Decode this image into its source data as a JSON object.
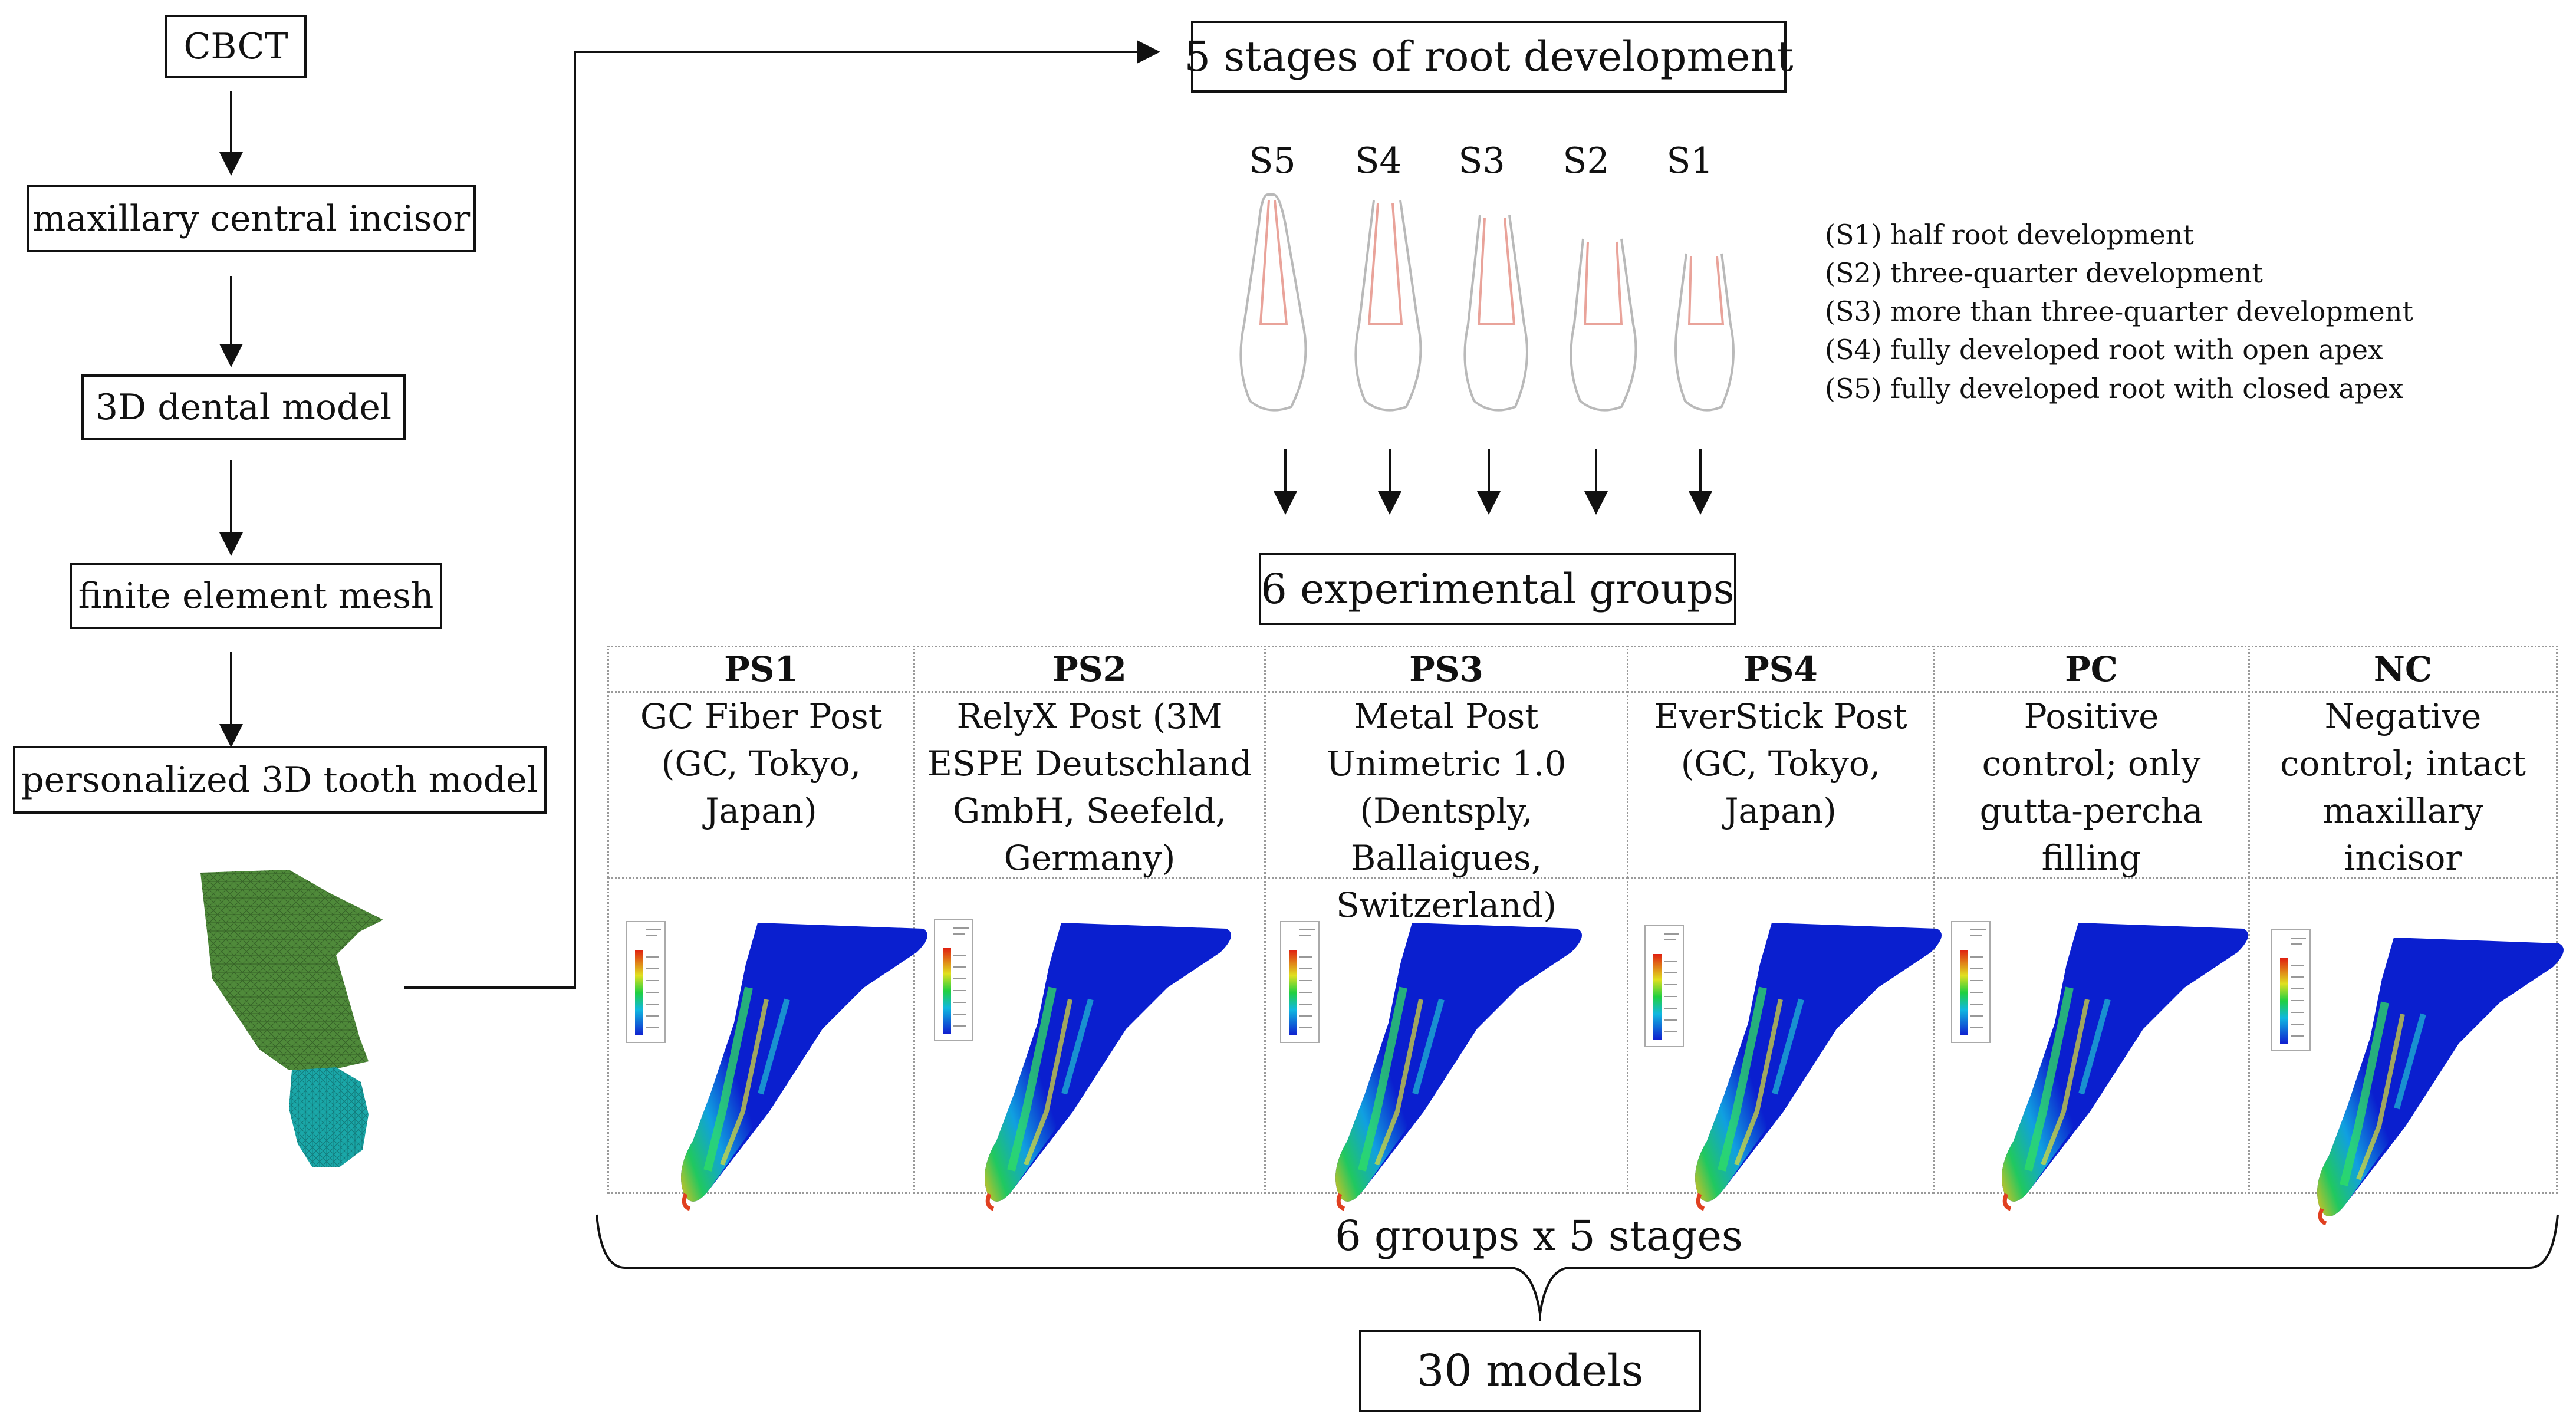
{
  "pipeline": {
    "steps": [
      "CBCT",
      "maxillary central incisor",
      "3D dental model",
      "finite element mesh",
      "personalized 3D tooth model"
    ]
  },
  "stages": {
    "title": "5 stages of root development",
    "labels": [
      "S5",
      "S4",
      "S3",
      "S2",
      "S1"
    ],
    "descriptions": [
      "(S1) half root development",
      "(S2) three-quarter development",
      "(S3) more than three-quarter development",
      "(S4) fully developed root with open apex",
      "(S5) fully developed root with closed apex"
    ]
  },
  "groups": {
    "title": "6 experimental groups",
    "items": [
      {
        "code": "PS1",
        "desc": "GC Fiber Post (GC, Tokyo, Japan)"
      },
      {
        "code": "PS2",
        "desc": "RelyX Post (3M ESPE Deutschland GmbH, Seefeld, Germany)"
      },
      {
        "code": "PS3",
        "desc": "Metal Post Unimetric 1.0 (Dentsply, Ballaigues, Switzerland)"
      },
      {
        "code": "PS4",
        "desc": "EverStick Post (GC, Tokyo, Japan)"
      },
      {
        "code": "PC",
        "desc": "Positive control; only gutta-percha filling"
      },
      {
        "code": "NC",
        "desc": "Negative control; intact maxillary incisor"
      }
    ]
  },
  "summary": {
    "combination": "6 groups x 5 stages",
    "total": "30 models"
  },
  "colors": {
    "mesh_green": "#4f8a3a",
    "mesh_teal": "#1aa7a8",
    "fea_blue": "#0a1fcf",
    "root_line": "#e9a39a"
  }
}
